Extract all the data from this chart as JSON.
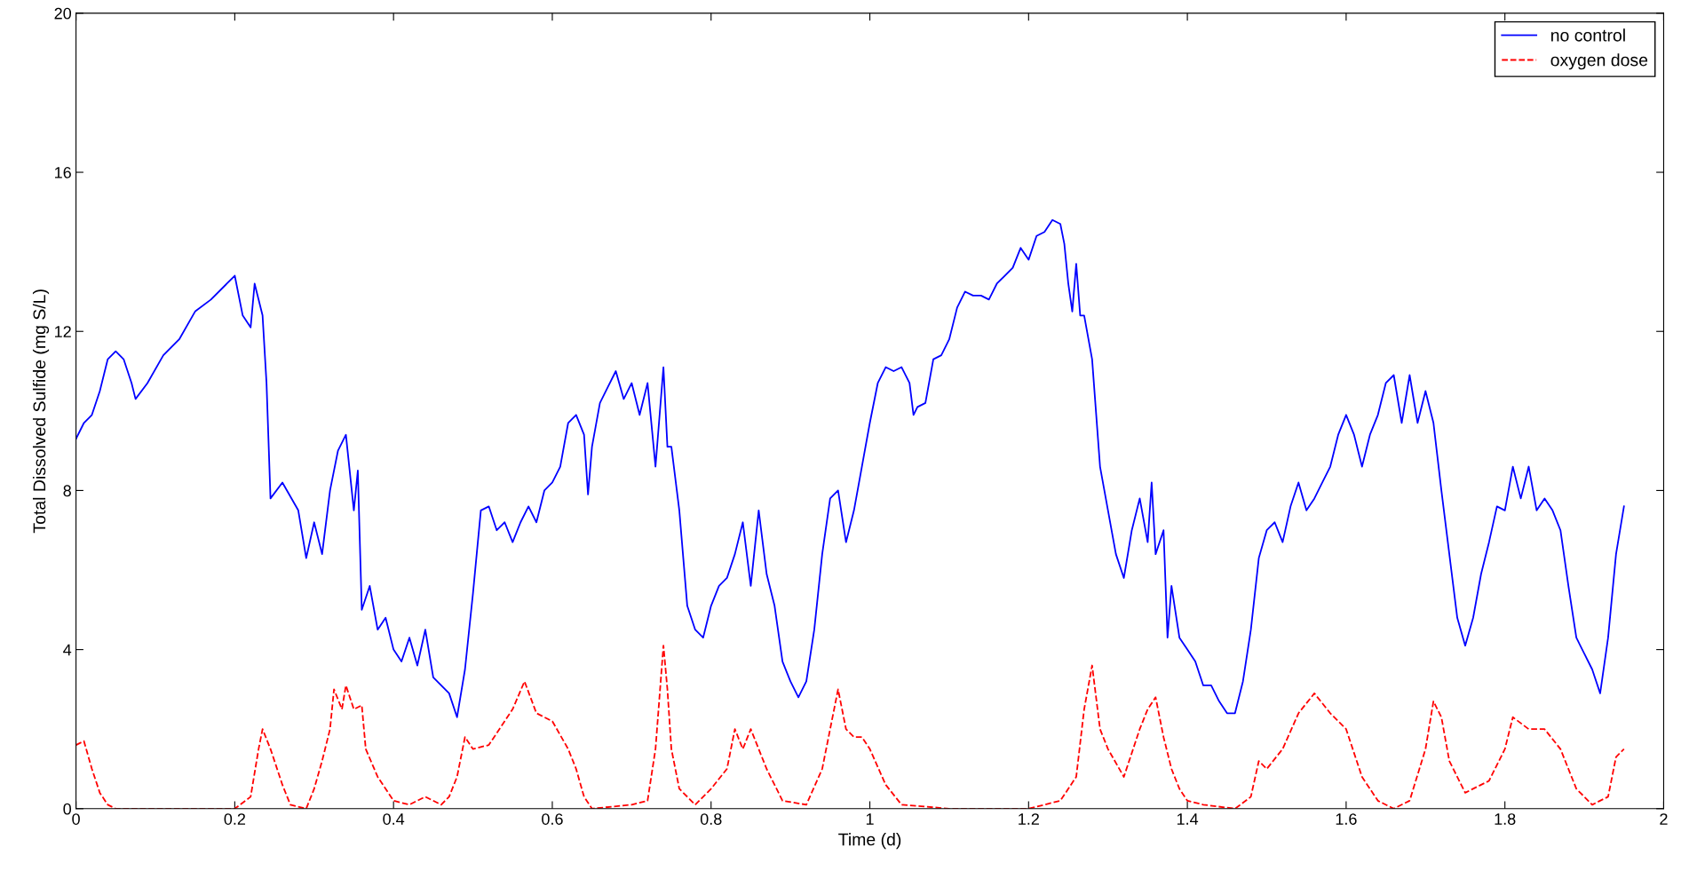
{
  "chart_data": {
    "type": "line",
    "xlabel": "Time (d)",
    "ylabel": "Total Dissolved Sulfide (mg S/L)",
    "xlim": [
      0,
      2
    ],
    "xticks": [
      0,
      0.2,
      0.4,
      0.6,
      0.8,
      1,
      1.2,
      1.4,
      1.6,
      1.8,
      2
    ],
    "ylim": [
      0,
      20
    ],
    "yticks": [
      0,
      4,
      8,
      12,
      16,
      20
    ],
    "grid": false,
    "legend": "top right",
    "marker": "none",
    "series": [
      {
        "name": "no control",
        "color": "#0000ff",
        "line_style": "solid",
        "x": [
          0,
          0.01,
          0.02,
          0.03,
          0.04,
          0.05,
          0.06,
          0.07,
          0.075,
          0.09,
          0.11,
          0.13,
          0.15,
          0.17,
          0.19,
          0.2,
          0.21,
          0.22,
          0.225,
          0.235,
          0.24,
          0.245,
          0.26,
          0.28,
          0.29,
          0.3,
          0.31,
          0.32,
          0.33,
          0.34,
          0.35,
          0.355,
          0.36,
          0.37,
          0.38,
          0.39,
          0.4,
          0.41,
          0.42,
          0.43,
          0.44,
          0.45,
          0.47,
          0.48,
          0.49,
          0.5,
          0.51,
          0.52,
          0.53,
          0.54,
          0.55,
          0.56,
          0.57,
          0.58,
          0.59,
          0.6,
          0.61,
          0.62,
          0.63,
          0.64,
          0.645,
          0.65,
          0.66,
          0.67,
          0.68,
          0.69,
          0.7,
          0.71,
          0.72,
          0.73,
          0.74,
          0.745,
          0.75,
          0.76,
          0.77,
          0.78,
          0.79,
          0.8,
          0.81,
          0.82,
          0.83,
          0.84,
          0.85,
          0.86,
          0.87,
          0.88,
          0.89,
          0.9,
          0.91,
          0.92,
          0.93,
          0.94,
          0.95,
          0.96,
          0.97,
          0.98,
          0.99,
          1.0,
          1.01,
          1.02,
          1.03,
          1.04,
          1.05,
          1.055,
          1.06,
          1.07,
          1.08,
          1.09,
          1.1,
          1.11,
          1.12,
          1.13,
          1.14,
          1.15,
          1.16,
          1.17,
          1.18,
          1.19,
          1.2,
          1.21,
          1.22,
          1.23,
          1.24,
          1.245,
          1.25,
          1.255,
          1.26,
          1.265,
          1.27,
          1.28,
          1.29,
          1.3,
          1.31,
          1.32,
          1.33,
          1.34,
          1.35,
          1.355,
          1.36,
          1.37,
          1.375,
          1.38,
          1.39,
          1.4,
          1.41,
          1.42,
          1.43,
          1.44,
          1.45,
          1.46,
          1.47,
          1.48,
          1.49,
          1.5,
          1.51,
          1.52,
          1.53,
          1.54,
          1.55,
          1.56,
          1.57,
          1.58,
          1.59,
          1.6,
          1.61,
          1.62,
          1.63,
          1.64,
          1.65,
          1.66,
          1.67,
          1.68,
          1.69,
          1.7,
          1.71,
          1.72,
          1.73,
          1.74,
          1.75,
          1.76,
          1.77,
          1.78,
          1.79,
          1.8,
          1.81,
          1.82,
          1.83,
          1.84,
          1.85,
          1.86,
          1.87,
          1.88,
          1.89,
          1.9,
          1.91,
          1.92,
          1.93,
          1.94,
          1.95
        ],
        "values": [
          9.3,
          9.7,
          9.9,
          10.5,
          11.3,
          11.5,
          11.3,
          10.7,
          10.3,
          10.7,
          11.4,
          11.8,
          12.5,
          12.8,
          13.2,
          13.4,
          12.4,
          12.1,
          13.2,
          12.4,
          10.7,
          7.8,
          8.2,
          7.5,
          6.3,
          7.2,
          6.4,
          8.0,
          9.0,
          9.4,
          7.5,
          8.5,
          5.0,
          5.6,
          4.5,
          4.8,
          4.0,
          3.7,
          4.3,
          3.6,
          4.5,
          3.3,
          2.9,
          2.3,
          3.5,
          5.4,
          7.5,
          7.6,
          7.0,
          7.2,
          6.7,
          7.2,
          7.6,
          7.2,
          8.0,
          8.2,
          8.6,
          9.7,
          9.9,
          9.4,
          7.9,
          9.1,
          10.2,
          10.6,
          11.0,
          10.3,
          10.7,
          9.9,
          10.7,
          8.6,
          11.1,
          9.1,
          9.1,
          7.5,
          5.1,
          4.5,
          4.3,
          5.1,
          5.6,
          5.8,
          6.4,
          7.2,
          5.6,
          7.5,
          5.9,
          5.1,
          3.7,
          3.2,
          2.8,
          3.2,
          4.5,
          6.4,
          7.8,
          8.0,
          6.7,
          7.5,
          8.6,
          9.7,
          10.7,
          11.1,
          11.0,
          11.1,
          10.7,
          9.9,
          10.1,
          10.2,
          11.3,
          11.4,
          11.8,
          12.6,
          13.0,
          12.9,
          12.9,
          12.8,
          13.2,
          13.4,
          13.6,
          14.1,
          13.8,
          14.4,
          14.5,
          14.8,
          14.7,
          14.2,
          13.2,
          12.5,
          13.7,
          12.4,
          12.4,
          11.3,
          8.6,
          7.5,
          6.4,
          5.8,
          7.0,
          7.8,
          6.7,
          8.2,
          6.4,
          7.0,
          4.3,
          5.6,
          4.3,
          4.0,
          3.7,
          3.1,
          3.1,
          2.7,
          2.4,
          2.4,
          3.2,
          4.5,
          6.3,
          7.0,
          7.2,
          6.7,
          7.6,
          8.2,
          7.5,
          7.8,
          8.2,
          8.6,
          9.4,
          9.9,
          9.4,
          8.6,
          9.4,
          9.9,
          10.7,
          10.9,
          9.7,
          10.9,
          9.7,
          10.5,
          9.7,
          8.0,
          6.4,
          4.8,
          4.1,
          4.8,
          5.9,
          6.7,
          7.6,
          7.5,
          8.6,
          7.8,
          8.6,
          7.5,
          7.8,
          7.5,
          7.0,
          5.6,
          4.3,
          3.9,
          3.5,
          2.9,
          4.3,
          6.4,
          7.6
        ]
      },
      {
        "name": "oxygen dose",
        "color": "#ff0000",
        "line_style": "dashed",
        "x": [
          0,
          0.01,
          0.02,
          0.03,
          0.04,
          0.05,
          0.1,
          0.2,
          0.22,
          0.23,
          0.235,
          0.245,
          0.26,
          0.27,
          0.29,
          0.3,
          0.31,
          0.32,
          0.325,
          0.335,
          0.34,
          0.35,
          0.36,
          0.365,
          0.38,
          0.4,
          0.42,
          0.44,
          0.46,
          0.47,
          0.48,
          0.49,
          0.5,
          0.52,
          0.55,
          0.565,
          0.58,
          0.6,
          0.62,
          0.63,
          0.64,
          0.65,
          0.7,
          0.72,
          0.73,
          0.74,
          0.745,
          0.75,
          0.76,
          0.78,
          0.8,
          0.82,
          0.83,
          0.84,
          0.85,
          0.87,
          0.89,
          0.92,
          0.94,
          0.955,
          0.96,
          0.97,
          0.98,
          0.99,
          1.0,
          1.02,
          1.04,
          1.1,
          1.2,
          1.24,
          1.26,
          1.27,
          1.28,
          1.29,
          1.3,
          1.32,
          1.34,
          1.35,
          1.36,
          1.37,
          1.38,
          1.39,
          1.4,
          1.42,
          1.46,
          1.48,
          1.49,
          1.5,
          1.52,
          1.54,
          1.56,
          1.58,
          1.6,
          1.62,
          1.64,
          1.66,
          1.68,
          1.7,
          1.71,
          1.72,
          1.73,
          1.75,
          1.78,
          1.8,
          1.81,
          1.83,
          1.85,
          1.87,
          1.89,
          1.91,
          1.93,
          1.94,
          1.95
        ],
        "values": [
          1.6,
          1.7,
          1.0,
          0.4,
          0.1,
          0,
          0,
          0,
          0.3,
          1.5,
          2.0,
          1.5,
          0.6,
          0.1,
          0,
          0.5,
          1.2,
          2.0,
          3.0,
          2.5,
          3.1,
          2.5,
          2.6,
          1.5,
          0.8,
          0.2,
          0.1,
          0.3,
          0.1,
          0.3,
          0.8,
          1.8,
          1.5,
          1.6,
          2.5,
          3.2,
          2.4,
          2.2,
          1.5,
          1.0,
          0.3,
          0,
          0.1,
          0.2,
          1.5,
          4.1,
          3.0,
          1.5,
          0.5,
          0.1,
          0.5,
          1.0,
          2.0,
          1.5,
          2.0,
          1.0,
          0.2,
          0.1,
          1.0,
          2.5,
          3.0,
          2.0,
          1.8,
          1.8,
          1.5,
          0.6,
          0.1,
          0,
          0,
          0.2,
          0.8,
          2.5,
          3.6,
          2.0,
          1.5,
          0.8,
          2.0,
          2.5,
          2.8,
          1.8,
          1.0,
          0.5,
          0.2,
          0.1,
          0,
          0.3,
          1.2,
          1.0,
          1.5,
          2.4,
          2.9,
          2.4,
          2.0,
          0.8,
          0.2,
          0,
          0.2,
          1.5,
          2.7,
          2.3,
          1.2,
          0.4,
          0.7,
          1.5,
          2.3,
          2.0,
          2.0,
          1.5,
          0.5,
          0.1,
          0.3,
          1.3,
          1.5
        ]
      }
    ]
  }
}
